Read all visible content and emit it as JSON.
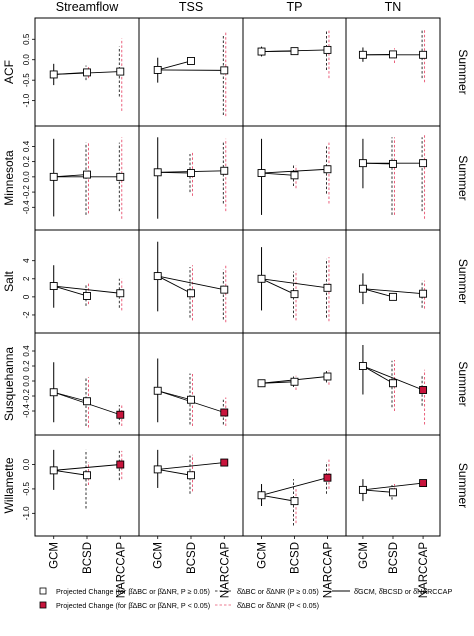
{
  "chart_data": {
    "type": "scatter",
    "columns": [
      "Streamflow",
      "TSS",
      "TP",
      "TN"
    ],
    "x_categories": [
      "GCM",
      "BCSD",
      "NARCCAP"
    ],
    "season": "Summer",
    "rows": [
      {
        "name": "ACF",
        "yticks": [
          -1.0,
          -0.5,
          0.0,
          0.5
        ],
        "ytick_labels": [
          "-1.0",
          "-0.5",
          "0.0",
          "0.5"
        ],
        "ylim": [
          -1.4,
          0.8
        ],
        "panels": [
          {
            "points": [
              {
                "v": -0.36,
                "lo": -0.62,
                "hi": -0.1,
                "sig": false
              },
              {
                "v": -0.31,
                "lo": -0.5,
                "hi": -0.14,
                "sig": false,
                "red_lo": -0.45,
                "red_hi": -0.18
              },
              {
                "v": -0.29,
                "lo": -0.9,
                "hi": 0.32,
                "sig": false,
                "red_lo": -1.25,
                "red_hi": 0.52
              }
            ]
          },
          {
            "points": [
              {
                "v": -0.25,
                "lo": -0.56,
                "hi": 0.05,
                "sig": false
              },
              {
                "v": -0.03,
                "lo": -0.1,
                "hi": 0.04,
                "sig": false,
                "red_lo": -0.08,
                "red_hi": 0.02
              },
              {
                "v": -0.26,
                "lo": -1.35,
                "hi": 0.62,
                "sig": false,
                "red_lo": -1.38,
                "red_hi": 0.7
              }
            ]
          },
          {
            "points": [
              {
                "v": 0.2,
                "lo": 0.08,
                "hi": 0.32,
                "sig": false
              },
              {
                "v": 0.21,
                "lo": 0.15,
                "hi": 0.27,
                "sig": false,
                "red_lo": 0.17,
                "red_hi": 0.26
              },
              {
                "v": 0.24,
                "lo": -0.25,
                "hi": 0.7,
                "sig": false,
                "red_lo": -0.45,
                "red_hi": 0.75
              }
            ]
          },
          {
            "points": [
              {
                "v": 0.12,
                "lo": -0.05,
                "hi": 0.3,
                "sig": false
              },
              {
                "v": 0.13,
                "lo": 0.04,
                "hi": 0.2,
                "sig": false,
                "red_lo": -0.08,
                "red_hi": 0.28
              },
              {
                "v": 0.12,
                "lo": -0.45,
                "hi": 0.72,
                "sig": false,
                "red_lo": -0.55,
                "red_hi": 0.75
              }
            ]
          }
        ]
      },
      {
        "name": "Minnesota",
        "yticks": [
          -0.4,
          -0.2,
          0.0,
          0.2,
          0.4
        ],
        "ytick_labels": [
          "-0.4",
          "-0.2",
          "0.0",
          "0.2",
          "0.4"
        ],
        "ylim": [
          -0.58,
          0.55
        ],
        "panels": [
          {
            "points": [
              {
                "v": 0.0,
                "lo": -0.52,
                "hi": 0.5,
                "sig": false
              },
              {
                "v": 0.03,
                "lo": -0.5,
                "hi": 0.45,
                "sig": false,
                "red_lo": -0.48,
                "red_hi": 0.45
              },
              {
                "v": 0.0,
                "lo": -0.45,
                "hi": 0.45,
                "sig": false,
                "red_lo": -0.55,
                "red_hi": 0.52
              }
            ]
          },
          {
            "points": [
              {
                "v": 0.06,
                "lo": -0.55,
                "hi": 0.52,
                "sig": false
              },
              {
                "v": 0.05,
                "lo": -0.2,
                "hi": 0.3,
                "sig": false,
                "red_lo": -0.25,
                "red_hi": 0.32
              },
              {
                "v": 0.08,
                "lo": -0.35,
                "hi": 0.45,
                "sig": false,
                "red_lo": -0.45,
                "red_hi": 0.5
              }
            ]
          },
          {
            "points": [
              {
                "v": 0.05,
                "lo": -0.5,
                "hi": 0.5,
                "sig": false
              },
              {
                "v": 0.02,
                "lo": -0.12,
                "hi": 0.15,
                "sig": false,
                "red_lo": -0.15,
                "red_hi": 0.15
              },
              {
                "v": 0.1,
                "lo": -0.22,
                "hi": 0.4,
                "sig": false,
                "red_lo": -0.35,
                "red_hi": 0.45
              }
            ]
          },
          {
            "points": [
              {
                "v": 0.18,
                "lo": -0.15,
                "hi": 0.5,
                "sig": false
              },
              {
                "v": 0.17,
                "lo": -0.5,
                "hi": 0.52,
                "sig": false,
                "red_lo": -0.5,
                "red_hi": 0.52
              },
              {
                "v": 0.18,
                "lo": -0.45,
                "hi": 0.52,
                "sig": false,
                "red_lo": -0.55,
                "red_hi": 0.55
              }
            ]
          }
        ]
      },
      {
        "name": "Salt",
        "yticks": [
          -2,
          0,
          2,
          4
        ],
        "ytick_labels": [
          "-2",
          "0",
          "2",
          "4"
        ],
        "ylim": [
          -3.0,
          6.4
        ],
        "panels": [
          {
            "points": [
              {
                "v": 1.2,
                "lo": -1.2,
                "hi": 3.5,
                "sig": false
              },
              {
                "v": 0.1,
                "lo": -1.0,
                "hi": 1.3,
                "sig": false,
                "red_lo": -0.8,
                "red_hi": 1.5
              },
              {
                "v": 0.4,
                "lo": -1.2,
                "hi": 2.0,
                "sig": false,
                "red_lo": -1.5,
                "red_hi": 2.0
              }
            ]
          },
          {
            "points": [
              {
                "v": 2.3,
                "lo": -1.6,
                "hi": 6.1,
                "sig": false
              },
              {
                "v": 0.4,
                "lo": -2.3,
                "hi": 3.3,
                "sig": false,
                "red_lo": -2.6,
                "red_hi": 3.5
              },
              {
                "v": 0.8,
                "lo": -2.5,
                "hi": 3.0,
                "sig": false,
                "red_lo": -2.8,
                "red_hi": 3.5
              }
            ]
          },
          {
            "points": [
              {
                "v": 2.0,
                "lo": -1.5,
                "hi": 5.5,
                "sig": false
              },
              {
                "v": 0.3,
                "lo": -2.3,
                "hi": 2.8,
                "sig": false,
                "red_lo": -2.6,
                "red_hi": 2.9
              },
              {
                "v": 1.0,
                "lo": -2.3,
                "hi": 4.2,
                "sig": false,
                "red_lo": -2.7,
                "red_hi": 4.4
              }
            ]
          },
          {
            "points": [
              {
                "v": 0.9,
                "lo": -0.8,
                "hi": 2.6,
                "sig": false
              },
              {
                "v": 0.0,
                "lo": -0.4,
                "hi": 0.4,
                "sig": false,
                "red_lo": -0.3,
                "red_hi": 0.3
              },
              {
                "v": 0.35,
                "lo": -1.2,
                "hi": 1.8,
                "sig": false,
                "red_lo": -1.3,
                "red_hi": 1.8
              }
            ]
          }
        ]
      },
      {
        "name": "Susquehanna",
        "yticks": [
          -0.4,
          -0.2,
          0.0,
          0.2,
          0.4
        ],
        "ytick_labels": [
          "-0.4",
          "-0.2",
          "0.0",
          "0.2",
          "0.4"
        ],
        "ylim": [
          -0.6,
          0.52
        ],
        "panels": [
          {
            "points": [
              {
                "v": -0.15,
                "lo": -0.55,
                "hi": 0.25,
                "sig": false
              },
              {
                "v": -0.27,
                "lo": -0.6,
                "hi": 0.05,
                "sig": false,
                "red_lo": -0.62,
                "red_hi": 0.05
              },
              {
                "v": -0.45,
                "lo": -0.58,
                "hi": -0.32,
                "sig": true,
                "red_lo": -0.6,
                "red_hi": -0.3
              }
            ]
          },
          {
            "points": [
              {
                "v": -0.13,
                "lo": -0.55,
                "hi": 0.3,
                "sig": false
              },
              {
                "v": -0.25,
                "lo": -0.58,
                "hi": 0.1,
                "sig": false,
                "red_lo": -0.6,
                "red_hi": 0.1
              },
              {
                "v": -0.42,
                "lo": -0.58,
                "hi": -0.25,
                "sig": true,
                "red_lo": -0.6,
                "red_hi": -0.22
              }
            ]
          },
          {
            "points": [
              {
                "v": -0.03,
                "lo": -0.06,
                "hi": 0.0,
                "sig": false
              },
              {
                "v": -0.01,
                "lo": -0.08,
                "hi": 0.06,
                "sig": false,
                "red_lo": -0.12,
                "red_hi": 0.07
              },
              {
                "v": 0.06,
                "lo": -0.02,
                "hi": 0.14,
                "sig": false,
                "red_lo": -0.05,
                "red_hi": 0.14
              }
            ]
          },
          {
            "points": [
              {
                "v": 0.2,
                "lo": -0.18,
                "hi": 0.48,
                "sig": false
              },
              {
                "v": -0.03,
                "lo": -0.35,
                "hi": 0.27,
                "sig": false,
                "red_lo": -0.4,
                "red_hi": 0.28
              },
              {
                "v": -0.12,
                "lo": -0.33,
                "hi": 0.09,
                "sig": true,
                "red_lo": -0.58,
                "red_hi": 0.15
              }
            ]
          }
        ]
      },
      {
        "name": "Willamette",
        "yticks": [
          -1.0,
          -0.5,
          0.0
        ],
        "ytick_labels": [
          "-1.0",
          "-0.5",
          "0.0"
        ],
        "ylim": [
          -1.28,
          0.42
        ],
        "panels": [
          {
            "points": [
              {
                "v": -0.12,
                "lo": -0.52,
                "hi": 0.3,
                "sig": false
              },
              {
                "v": -0.22,
                "lo": -0.9,
                "hi": 0.3,
                "sig": false,
                "red_lo": -0.42,
                "red_hi": 0.05
              },
              {
                "v": 0.0,
                "lo": -0.32,
                "hi": 0.28,
                "sig": true,
                "red_lo": -0.3,
                "red_hi": 0.28
              }
            ]
          },
          {
            "points": [
              {
                "v": -0.1,
                "lo": -0.48,
                "hi": 0.3,
                "sig": false
              },
              {
                "v": -0.22,
                "lo": -0.6,
                "hi": 0.18,
                "sig": false,
                "red_lo": -0.55,
                "red_hi": 0.2
              },
              {
                "v": 0.04,
                "lo": -0.02,
                "hi": 0.1,
                "sig": true,
                "red_lo": -0.02,
                "red_hi": 0.1
              }
            ]
          },
          {
            "points": [
              {
                "v": -0.63,
                "lo": -0.85,
                "hi": -0.4,
                "sig": false
              },
              {
                "v": -0.75,
                "lo": -1.25,
                "hi": -0.3,
                "sig": false,
                "red_lo": -1.2,
                "red_hi": -0.5
              },
              {
                "v": -0.27,
                "lo": -0.6,
                "hi": 0.05,
                "sig": true,
                "red_lo": -0.5,
                "red_hi": 0.1
              }
            ]
          },
          {
            "points": [
              {
                "v": -0.52,
                "lo": -0.75,
                "hi": -0.3,
                "sig": false
              },
              {
                "v": -0.57,
                "lo": -0.72,
                "hi": -0.42,
                "sig": false,
                "red_lo": -0.62,
                "red_hi": -0.4
              },
              {
                "v": -0.38,
                "lo": -0.45,
                "hi": -0.3,
                "sig": true,
                "red_lo": -0.45,
                "red_hi": -0.32
              }
            ]
          }
        ]
      }
    ],
    "legend": {
      "open_square": "Projected Change (for β̂ΔBC or β̂ΔNR, P ≥ 0.05)",
      "filled_square": "Projected Change (for β̂ΔBC or β̂ΔNR, P < 0.05)",
      "black_dashed": "δ̂ΔBC or δ̂ΔNR (P ≥ 0.05)",
      "red_dashed": "δ̂ΔBC or δ̂ΔNR (P < 0.05)",
      "solid": "δ̂GCM, δ̂BCSD or δ̂NARCCAP"
    },
    "colors": {
      "significant_fill": "#c8143c",
      "red_interval": "#e8506e",
      "line": "#000000"
    }
  }
}
